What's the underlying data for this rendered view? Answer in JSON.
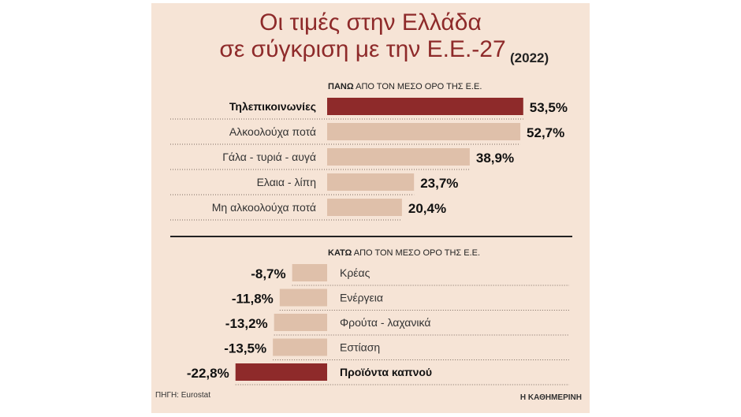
{
  "title_line1": "Οι τιμές στην Ελλάδα",
  "title_line2": "σε σύγκριση με την Ε.Ε.-27",
  "title_year": "(2022)",
  "source": "ΠΗΓΗ: Eurostat",
  "brand": "Η ΚΑΘΗΜΕΡΙΝΗ",
  "colors": {
    "highlight": "#8e2a2a",
    "bar": "#dfc0aa",
    "panel": "#f6e4d6"
  },
  "chart_data": [
    {
      "type": "bar",
      "title": "ΠΑΝΩ ΑΠΟ ΤΟΝ ΜΕΣΟ ΟΡΟ ΤΗΣ Ε.Ε.",
      "title_bold": "ΠΑΝΩ",
      "title_rest": "ΑΠΟ ΤΟΝ ΜΕΣΟ ΟΡΟ ΤΗΣ Ε.Ε.",
      "categories": [
        "Τηλεπικοινωνίες",
        "Αλκοολούχα ποτά",
        "Γάλα - τυριά - αυγά",
        "Ελαια - λίπη",
        "Μη αλκοολούχα ποτά"
      ],
      "values": [
        53.5,
        52.7,
        38.9,
        23.7,
        20.4
      ],
      "value_labels": [
        "53,5%",
        "52,7%",
        "38,9%",
        "23,7%",
        "20,4%"
      ],
      "highlight": [
        true,
        false,
        false,
        false,
        false
      ],
      "unit": "%"
    },
    {
      "type": "bar",
      "title": "ΚΑΤΩ ΑΠΟ ΤΟΝ ΜΕΣΟ ΟΡΟ ΤΗΣ Ε.Ε.",
      "title_bold": "ΚΑΤΩ",
      "title_rest": "ΑΠΟ ΤΟΝ ΜΕΣΟ ΟΡΟ ΤΗΣ Ε.Ε.",
      "categories": [
        "Κρέας",
        "Ενέργεια",
        "Φρούτα - λαχανικά",
        "Εστίαση",
        "Προϊόντα καπνού"
      ],
      "values": [
        -8.7,
        -11.8,
        -13.2,
        -13.5,
        -22.8
      ],
      "value_labels": [
        "-8,7%",
        "-11,8%",
        "-13,2%",
        "-13,5%",
        "-22,8%"
      ],
      "highlight": [
        false,
        false,
        false,
        false,
        true
      ],
      "unit": "%"
    }
  ]
}
